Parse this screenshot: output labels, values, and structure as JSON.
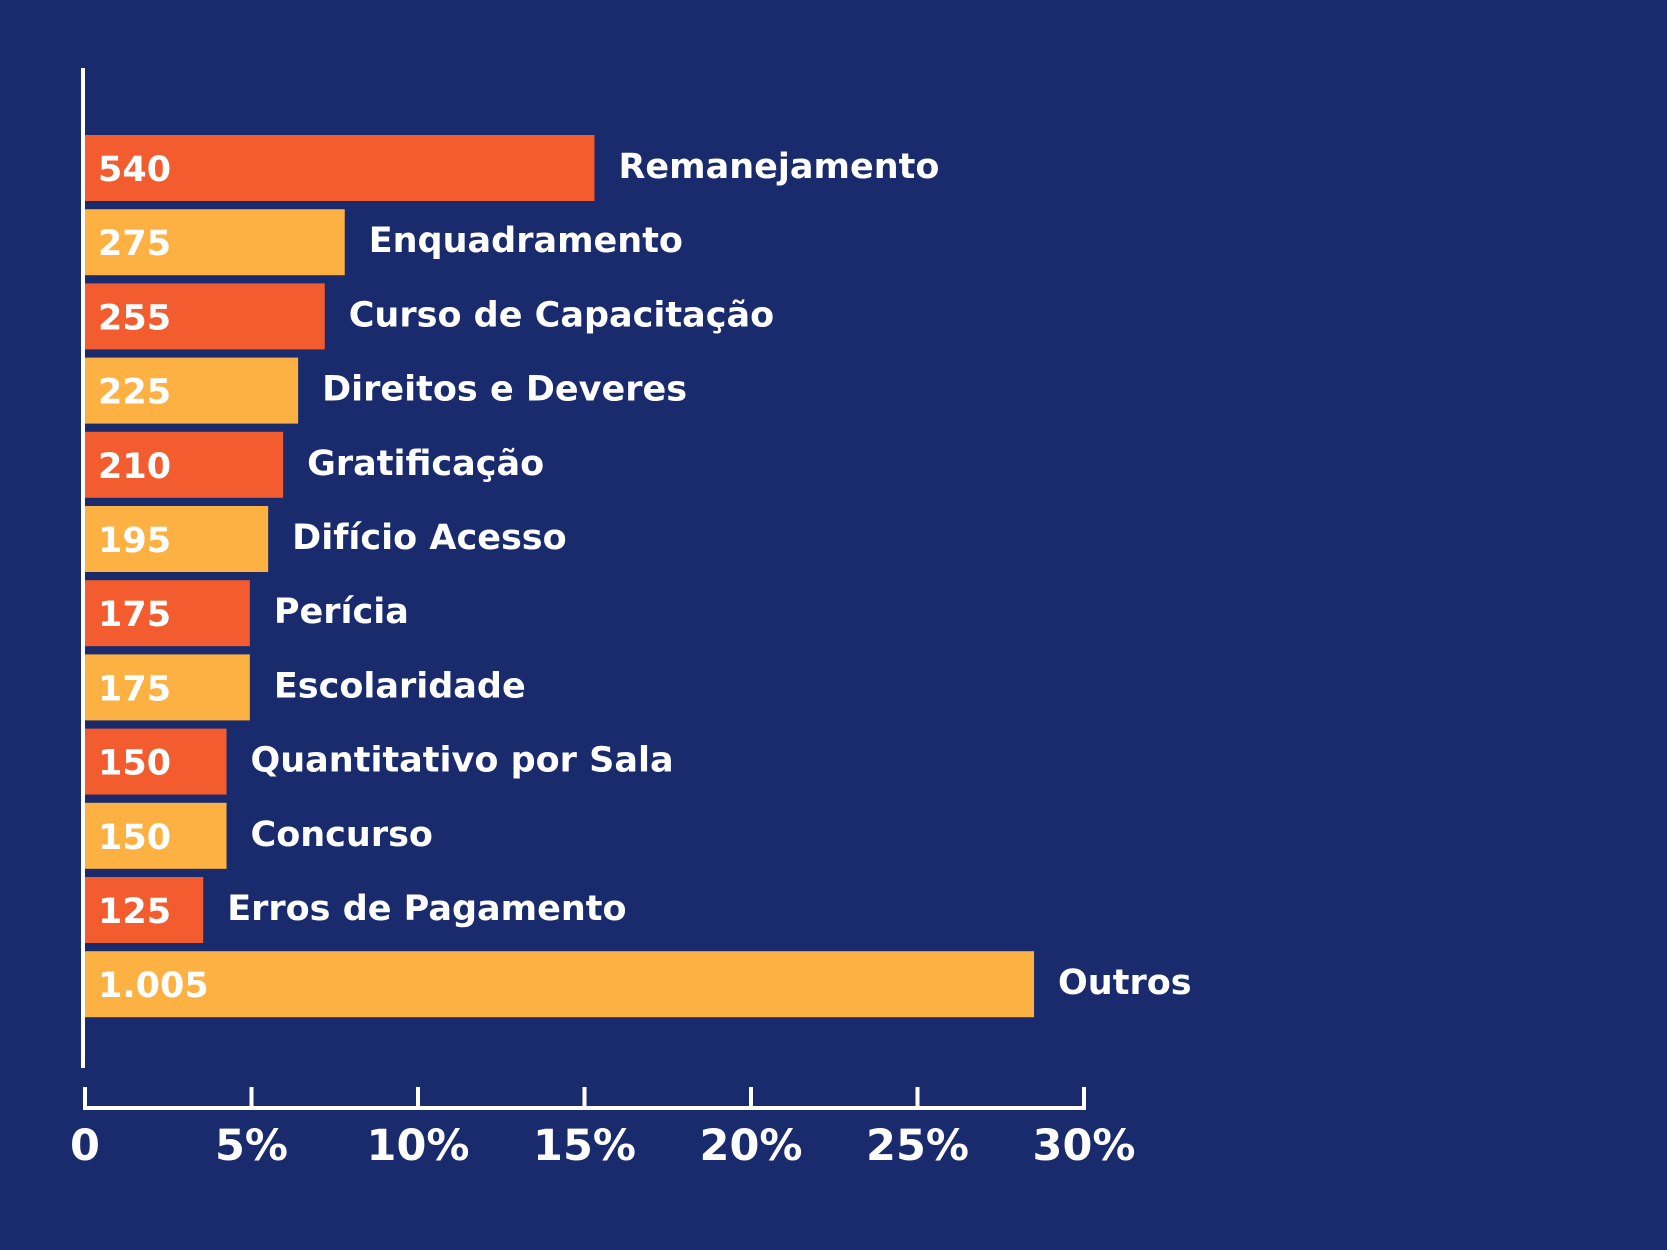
{
  "chart_data": {
    "type": "bar",
    "orientation": "horizontal",
    "categories": [
      "Remanejamento",
      "Enquadramento",
      "Curso de Capacitação",
      "Direitos e Deveres",
      "Gratificação",
      "Difício Acesso",
      "Perícia",
      "Escolaridade",
      "Quantitativo por Sala",
      "Concurso",
      "Erros de Pagamento",
      "Outros"
    ],
    "value_labels": [
      "540",
      "275",
      "255",
      "225",
      "210",
      "195",
      "175",
      "175",
      "150",
      "150",
      "125",
      "1.005"
    ],
    "values_percent": [
      15.3,
      7.8,
      7.2,
      6.4,
      5.95,
      5.5,
      4.95,
      4.95,
      4.25,
      4.25,
      3.55,
      28.5
    ],
    "xlim": [
      0,
      30
    ],
    "x_ticks": [
      0,
      5,
      10,
      15,
      20,
      25,
      30
    ],
    "x_tick_labels": [
      "0",
      "5%",
      "10%",
      "15%",
      "20%",
      "25%",
      "30%"
    ],
    "title": "",
    "xlabel": "",
    "ylabel": "",
    "grid": false,
    "legend": "none"
  },
  "colors": {
    "background": "#1a2b6d",
    "bar_primary": "#f25c2e",
    "bar_secondary": "#fdb143",
    "text": "#ffffff",
    "axis": "#ffffff"
  }
}
